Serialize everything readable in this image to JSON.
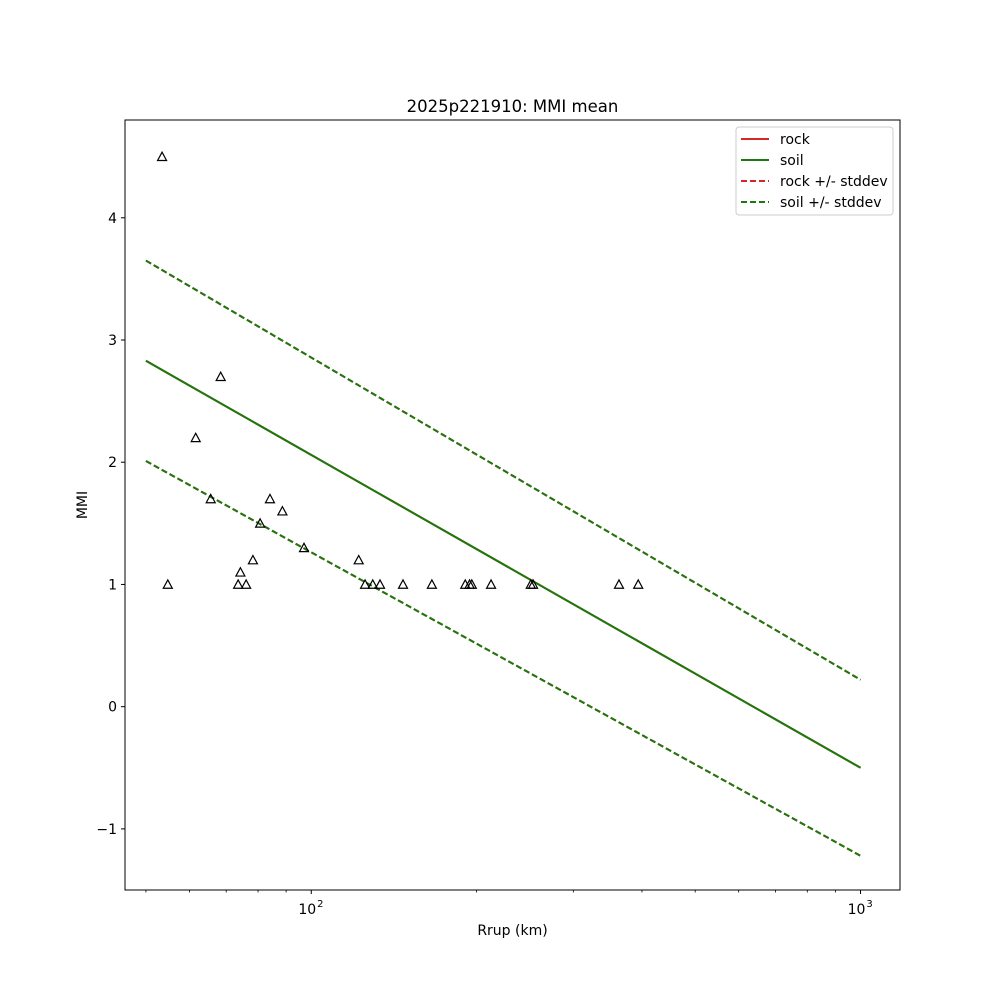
{
  "chart_data": {
    "type": "scatter",
    "title": "2025p221910: MMI mean",
    "xlabel": "Rrup (km)",
    "ylabel": "MMI",
    "xscale": "log",
    "xlim": [
      45.8,
      1180
    ],
    "ylim": [
      -1.5,
      4.8
    ],
    "grid": false,
    "legend_position": "top-right",
    "x_ticks": [
      {
        "value": 100,
        "base": "10",
        "exp": "2"
      },
      {
        "value": 1000,
        "base": "10",
        "exp": "3"
      }
    ],
    "x_minor_ticks": [
      50,
      60,
      70,
      80,
      90,
      200,
      300,
      400,
      500,
      600,
      700,
      800,
      900
    ],
    "y_ticks": [
      {
        "value": -1,
        "label": "−1"
      },
      {
        "value": 0,
        "label": "0"
      },
      {
        "value": 1,
        "label": "1"
      },
      {
        "value": 2,
        "label": "2"
      },
      {
        "value": 3,
        "label": "3"
      },
      {
        "value": 4,
        "label": "4"
      }
    ],
    "series": [
      {
        "name": "rock",
        "style": "solid",
        "color": "#d62728",
        "x": [
          50,
          1000
        ],
        "y": [
          2.83,
          -0.5
        ]
      },
      {
        "name": "soil",
        "style": "solid",
        "color": "#1a7a0e",
        "x": [
          50,
          1000
        ],
        "y": [
          2.83,
          -0.5
        ]
      },
      {
        "name": "rock +/- stddev",
        "style": "dashed",
        "color": "#d62728",
        "x": [
          50,
          1000
        ],
        "y_upper": [
          3.65,
          0.22
        ],
        "y_lower": [
          2.01,
          -1.22
        ]
      },
      {
        "name": "soil +/- stddev",
        "style": "dashed",
        "color": "#1a7a0e",
        "x": [
          50,
          1000
        ],
        "y_upper": [
          3.65,
          0.22
        ],
        "y_lower": [
          2.01,
          -1.22
        ]
      }
    ],
    "observations": {
      "marker": "triangle",
      "points": [
        {
          "x": 53.5,
          "y": 4.5
        },
        {
          "x": 54.8,
          "y": 1.0
        },
        {
          "x": 61.6,
          "y": 2.2
        },
        {
          "x": 65.6,
          "y": 1.7
        },
        {
          "x": 68.4,
          "y": 2.7
        },
        {
          "x": 73.6,
          "y": 1.0
        },
        {
          "x": 74.3,
          "y": 1.1
        },
        {
          "x": 76.1,
          "y": 1.0
        },
        {
          "x": 78.3,
          "y": 1.2
        },
        {
          "x": 80.7,
          "y": 1.5
        },
        {
          "x": 84.1,
          "y": 1.7
        },
        {
          "x": 88.6,
          "y": 1.6
        },
        {
          "x": 97.0,
          "y": 1.3
        },
        {
          "x": 122.0,
          "y": 1.2
        },
        {
          "x": 125.3,
          "y": 1.0
        },
        {
          "x": 129.4,
          "y": 1.0
        },
        {
          "x": 133.4,
          "y": 1.0
        },
        {
          "x": 146.9,
          "y": 1.0
        },
        {
          "x": 165.8,
          "y": 1.0
        },
        {
          "x": 190.7,
          "y": 1.0
        },
        {
          "x": 194.2,
          "y": 1.0
        },
        {
          "x": 196.0,
          "y": 1.0
        },
        {
          "x": 212.5,
          "y": 1.0
        },
        {
          "x": 251.0,
          "y": 1.0
        },
        {
          "x": 253.4,
          "y": 1.0
        },
        {
          "x": 363.3,
          "y": 1.0
        },
        {
          "x": 393.8,
          "y": 1.0
        }
      ]
    }
  }
}
